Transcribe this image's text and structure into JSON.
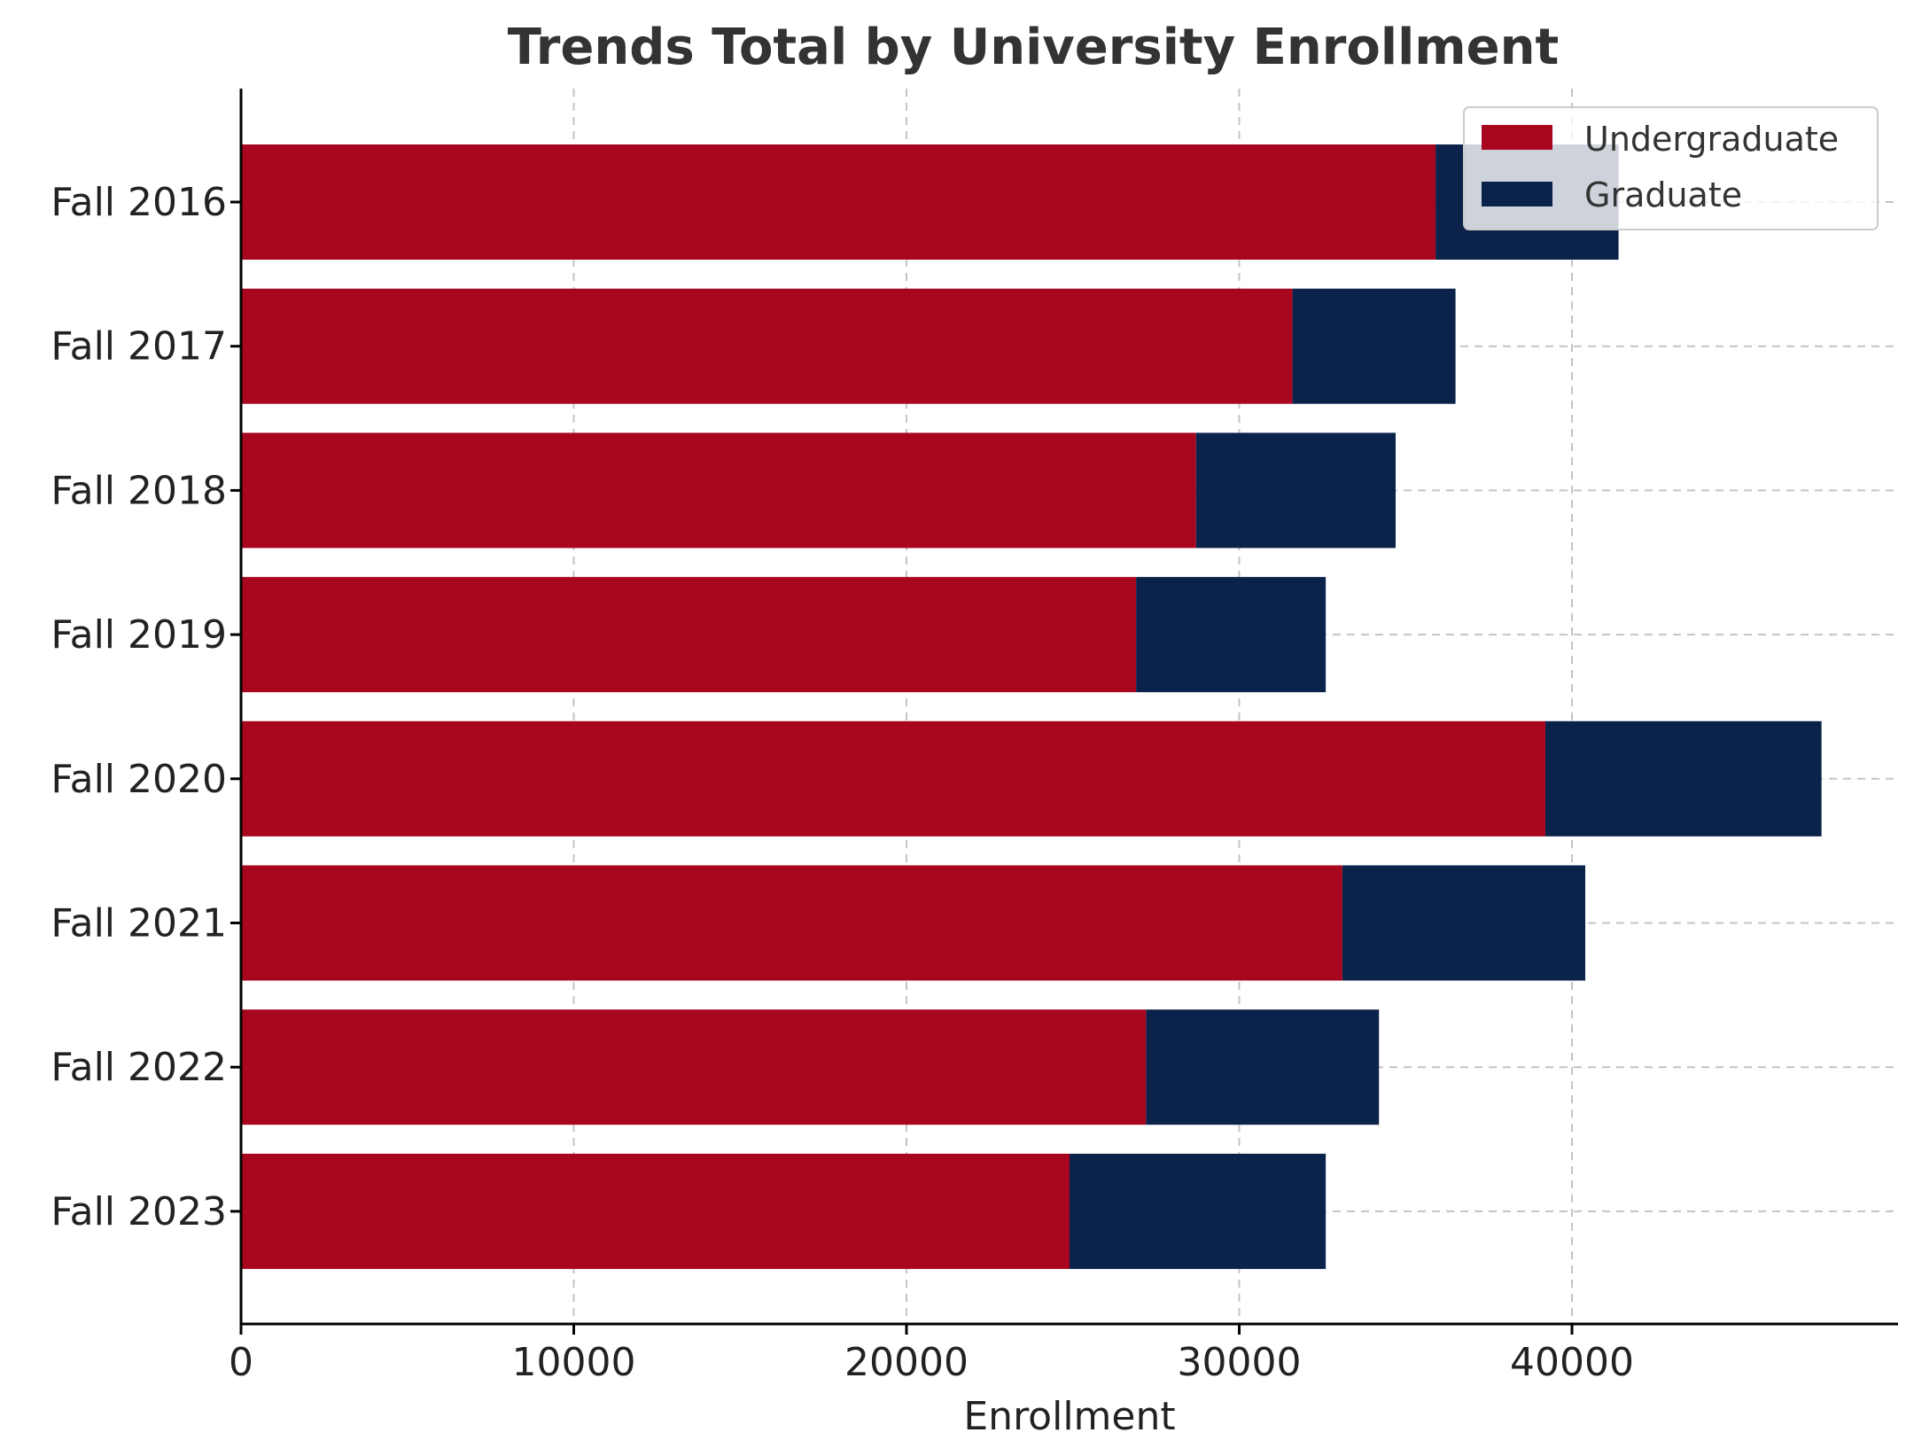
{
  "chart_data": {
    "type": "bar",
    "orientation": "horizontal",
    "stacked": true,
    "title": "Trends Total by University Enrollment",
    "xlabel": "Enrollment",
    "ylabel": "",
    "xlim": [
      0,
      49800
    ],
    "xticks": [
      "0",
      "10000",
      "20000",
      "30000",
      "40000"
    ],
    "xtick_values": [
      0,
      10000,
      20000,
      30000,
      40000
    ],
    "grid": true,
    "legend_position": "top-right",
    "categories": [
      "Fall 2016",
      "Fall 2017",
      "Fall 2018",
      "Fall 2019",
      "Fall 2020",
      "Fall 2021",
      "Fall 2022",
      "Fall 2023"
    ],
    "series": [
      {
        "name": "Undergraduate",
        "color": "#a8051f",
        "values": [
          35900,
          31600,
          28700,
          26900,
          39200,
          33100,
          27200,
          24900
        ]
      },
      {
        "name": "Graduate",
        "color": "#0b224b",
        "values": [
          5500,
          4900,
          6000,
          5700,
          8300,
          7300,
          7000,
          7700
        ]
      }
    ]
  }
}
